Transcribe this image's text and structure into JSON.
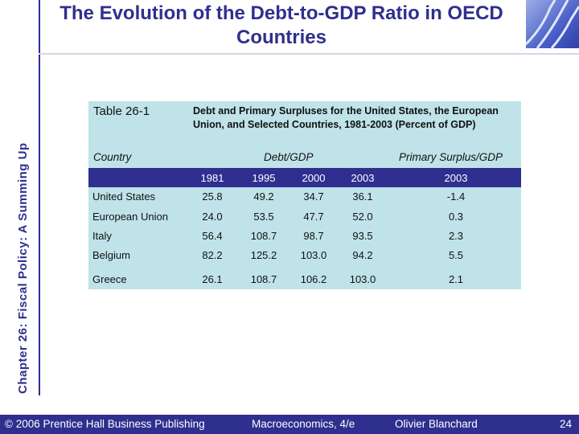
{
  "sidebar": {
    "chapter_label": "Chapter 26: Fiscal Policy: A Summing Up"
  },
  "slide": {
    "title": "The Evolution of the Debt-to-GDP Ratio in OECD Countries"
  },
  "table": {
    "id": "Table 26-1",
    "caption": "Debt and Primary Surpluses for the United States, the European Union, and Selected Countries, 1981-2003 (Percent of GDP)",
    "headers": {
      "country": "Country",
      "debt": "Debt/GDP",
      "surplus": "Primary Surplus/GDP"
    },
    "years": [
      "1981",
      "1995",
      "2000",
      "2003",
      "2003"
    ],
    "rows": [
      {
        "name": "United States",
        "values": [
          "25.8",
          "49.2",
          "34.7",
          "36.1",
          "-1.4"
        ]
      },
      {
        "name": "European Union",
        "values": [
          "24.0",
          "53.5",
          "47.7",
          "52.0",
          "0.3"
        ]
      },
      {
        "name": "Italy",
        "values": [
          "56.4",
          "108.7",
          "98.7",
          "93.5",
          "2.3"
        ]
      },
      {
        "name": "Belgium",
        "values": [
          "82.2",
          "125.2",
          "103.0",
          "94.2",
          "5.5"
        ]
      },
      {
        "name": "Greece",
        "values": [
          "26.1",
          "108.7",
          "106.2",
          "103.0",
          "2.1"
        ]
      }
    ]
  },
  "footer": {
    "copyright": "© 2006 Prentice Hall Business Publishing",
    "book": "Macroeconomics, 4/e",
    "author": "Olivier Blanchard",
    "page": "24"
  },
  "colors": {
    "brand": "#2f2f8f",
    "panel": "#bfe3e9"
  }
}
